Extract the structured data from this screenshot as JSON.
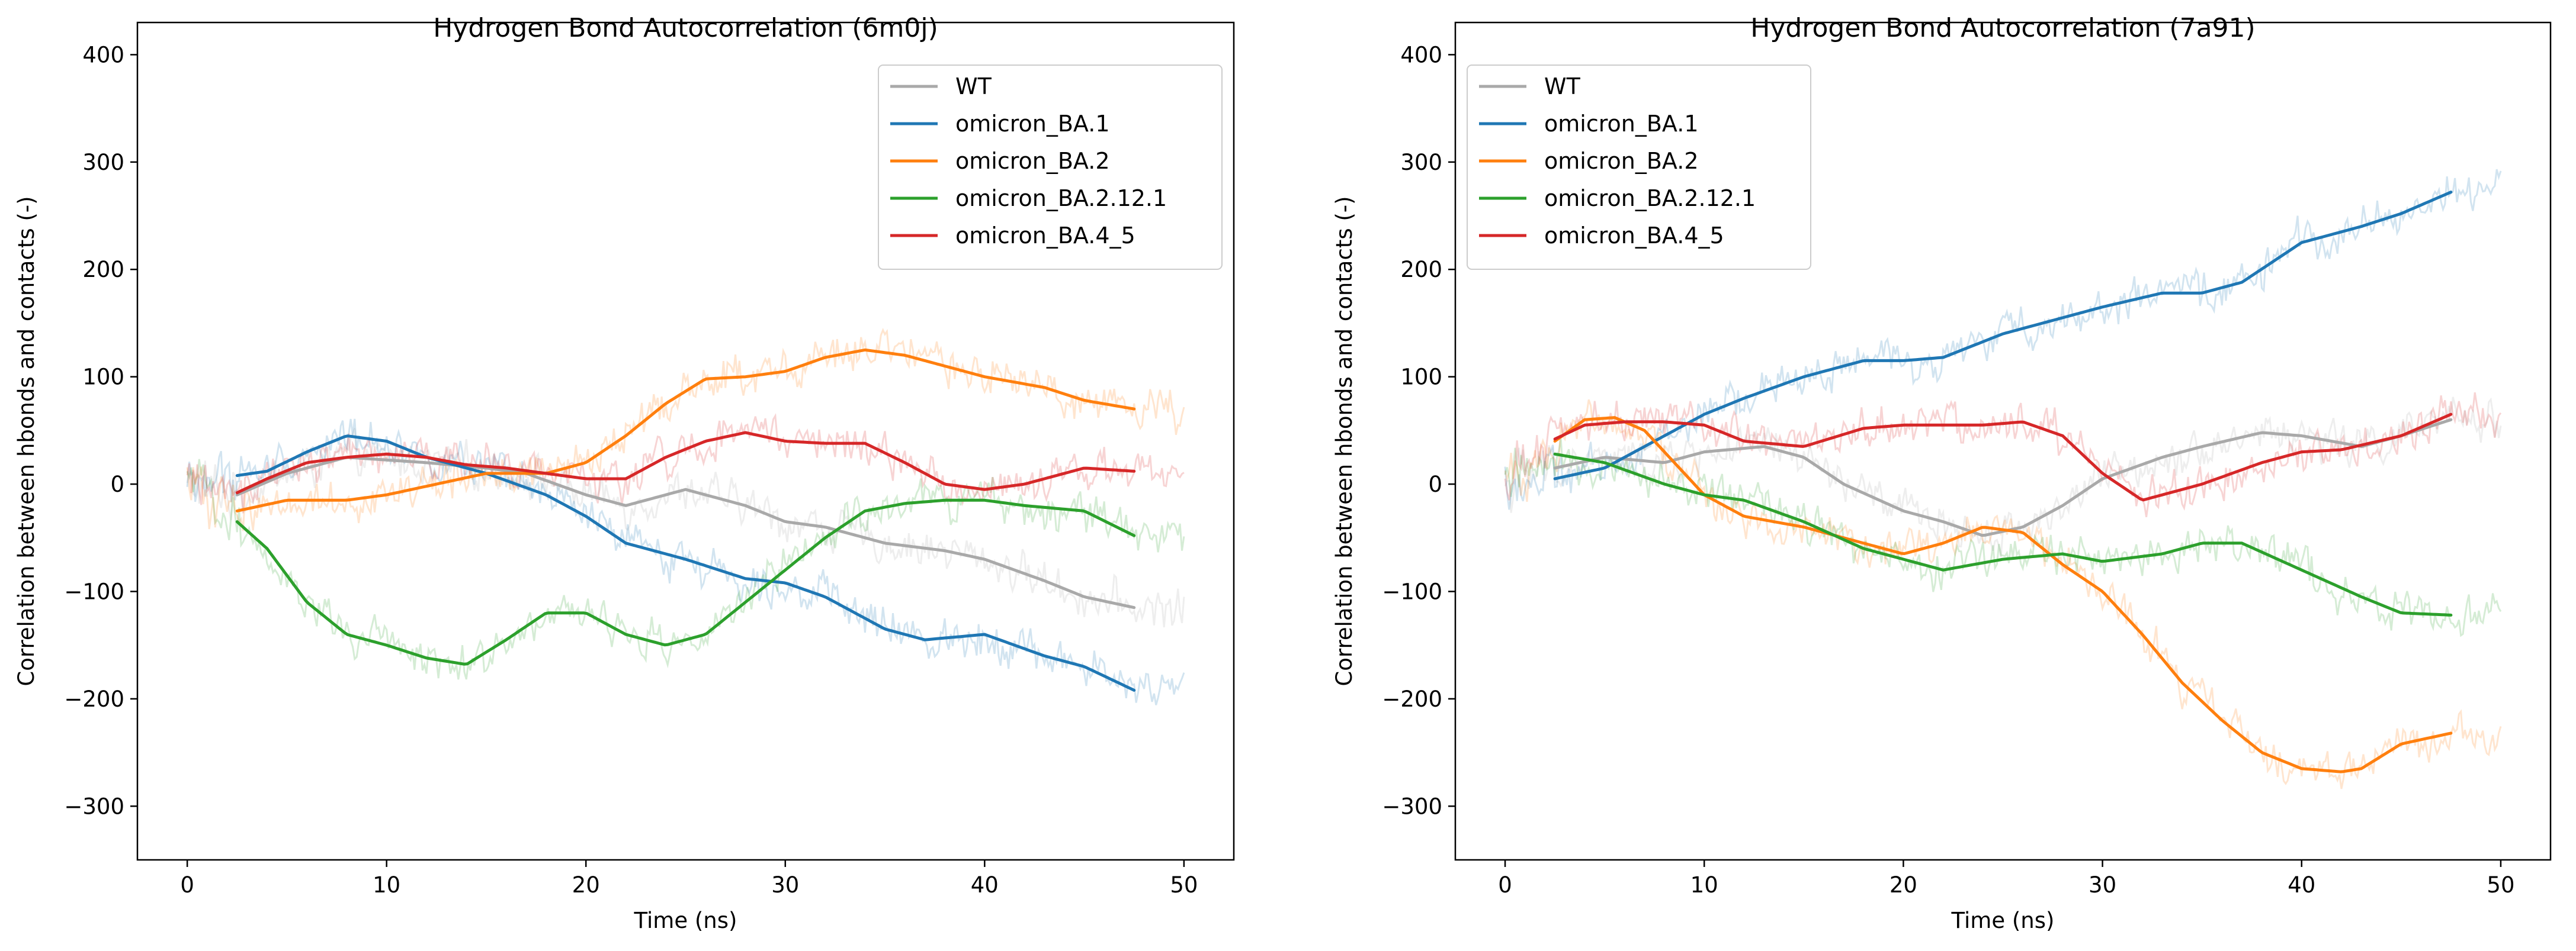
{
  "figure_title": "",
  "chart_data": [
    {
      "type": "line",
      "title": "Hydrogen Bond Autocorrelation (6m0j)",
      "xlabel": "Time (ns)",
      "ylabel": "Correlation between hbonds and contacts (-)",
      "xlim": [
        -2.5,
        52.5
      ],
      "ylim": [
        -350,
        430
      ],
      "xticks": [
        0,
        10,
        20,
        30,
        40,
        50
      ],
      "yticks": [
        -300,
        -200,
        -100,
        0,
        100,
        200,
        300,
        400
      ],
      "grid": false,
      "legend_position": "top-right",
      "series": [
        {
          "name": "WT",
          "color": "#a9a9a9",
          "x": [
            2.5,
            5,
            8,
            12,
            15,
            17,
            20,
            22,
            25,
            28,
            30,
            32,
            35,
            38,
            40,
            43,
            45,
            47.5
          ],
          "y": [
            -10,
            10,
            25,
            20,
            15,
            10,
            -10,
            -20,
            -5,
            -20,
            -35,
            -40,
            -55,
            -62,
            -70,
            -90,
            -105,
            -115
          ]
        },
        {
          "name": "omicron_BA.1",
          "color": "#1f77b4",
          "x": [
            2.5,
            4,
            6,
            8,
            10,
            12,
            15,
            18,
            20,
            22,
            25,
            28,
            30,
            32,
            35,
            37,
            40,
            43,
            45,
            47.5
          ],
          "y": [
            8,
            12,
            30,
            45,
            40,
            25,
            10,
            -10,
            -30,
            -55,
            -70,
            -88,
            -92,
            -105,
            -135,
            -145,
            -140,
            -160,
            -170,
            -192
          ]
        },
        {
          "name": "omicron_BA.2",
          "color": "#ff7f0e",
          "x": [
            2.5,
            5,
            8,
            10,
            15,
            18,
            20,
            22,
            24,
            26,
            28,
            30,
            32,
            34,
            36,
            38,
            40,
            43,
            45,
            47.5
          ],
          "y": [
            -25,
            -15,
            -15,
            -10,
            10,
            10,
            20,
            45,
            75,
            98,
            100,
            105,
            118,
            125,
            120,
            110,
            100,
            90,
            78,
            70
          ]
        },
        {
          "name": "omicron_BA.2.12.1",
          "color": "#2ca02c",
          "x": [
            2.5,
            4,
            6,
            8,
            10,
            12,
            14,
            16,
            18,
            20,
            22,
            24,
            26,
            28,
            30,
            32,
            34,
            36,
            38,
            40,
            42,
            45,
            47.5
          ],
          "y": [
            -35,
            -60,
            -110,
            -140,
            -150,
            -162,
            -168,
            -145,
            -120,
            -120,
            -140,
            -150,
            -140,
            -110,
            -80,
            -50,
            -25,
            -18,
            -15,
            -15,
            -20,
            -25,
            -48
          ]
        },
        {
          "name": "omicron_BA.4_5",
          "color": "#d62728",
          "x": [
            2.5,
            4,
            6,
            8,
            10,
            12,
            14,
            16,
            18,
            20,
            22,
            24,
            26,
            28,
            30,
            32,
            34,
            36,
            38,
            40,
            42,
            45,
            47.5
          ],
          "y": [
            -8,
            5,
            20,
            25,
            28,
            25,
            18,
            15,
            10,
            5,
            5,
            25,
            40,
            48,
            40,
            38,
            38,
            20,
            0,
            -5,
            0,
            15,
            12
          ]
        }
      ]
    },
    {
      "type": "line",
      "title": "Hydrogen Bond Autocorrelation (7a91)",
      "xlabel": "Time (ns)",
      "ylabel": "Correlation between hbonds and contacts (-)",
      "xlim": [
        -2.5,
        52.5
      ],
      "ylim": [
        -350,
        430
      ],
      "xticks": [
        0,
        10,
        20,
        30,
        40,
        50
      ],
      "yticks": [
        -300,
        -200,
        -100,
        0,
        100,
        200,
        300,
        400
      ],
      "grid": false,
      "legend_position": "top-left",
      "series": [
        {
          "name": "WT",
          "color": "#a9a9a9",
          "x": [
            2.5,
            5,
            8,
            10,
            13,
            15,
            17,
            20,
            22,
            24,
            26,
            28,
            30,
            33,
            35,
            38,
            40,
            43,
            45,
            47.5
          ],
          "y": [
            15,
            25,
            20,
            30,
            35,
            25,
            0,
            -25,
            -35,
            -48,
            -40,
            -20,
            5,
            25,
            35,
            48,
            45,
            35,
            45,
            60
          ]
        },
        {
          "name": "omicron_BA.1",
          "color": "#1f77b4",
          "x": [
            2.5,
            5,
            8,
            10,
            12,
            15,
            18,
            20,
            22,
            25,
            27,
            30,
            33,
            35,
            37,
            40,
            43,
            45,
            47.5
          ],
          "y": [
            5,
            15,
            45,
            65,
            80,
            100,
            115,
            115,
            118,
            140,
            150,
            165,
            178,
            178,
            188,
            225,
            240,
            252,
            272
          ]
        },
        {
          "name": "omicron_BA.2",
          "color": "#ff7f0e",
          "x": [
            2.5,
            4,
            5.5,
            7,
            8,
            9,
            10,
            12,
            15,
            18,
            20,
            22,
            24,
            26,
            28,
            30,
            32,
            34,
            36,
            38,
            40,
            42,
            43,
            45,
            47.5
          ],
          "y": [
            40,
            60,
            62,
            50,
            30,
            10,
            -10,
            -30,
            -40,
            -55,
            -65,
            -55,
            -40,
            -45,
            -75,
            -100,
            -140,
            -185,
            -220,
            -250,
            -265,
            -268,
            -265,
            -242,
            -232
          ]
        },
        {
          "name": "omicron_BA.2.12.1",
          "color": "#2ca02c",
          "x": [
            2.5,
            5,
            8,
            10,
            12,
            15,
            18,
            20,
            22,
            25,
            28,
            30,
            33,
            35,
            37,
            40,
            43,
            45,
            47.5
          ],
          "y": [
            28,
            20,
            0,
            -10,
            -15,
            -35,
            -60,
            -70,
            -80,
            -70,
            -65,
            -72,
            -65,
            -55,
            -55,
            -80,
            -105,
            -120,
            -122
          ]
        },
        {
          "name": "omicron_BA.4_5",
          "color": "#d62728",
          "x": [
            2.5,
            4,
            6,
            8,
            10,
            12,
            15,
            18,
            20,
            22,
            24,
            26,
            28,
            30,
            32,
            35,
            38,
            40,
            42,
            45,
            47.5
          ],
          "y": [
            42,
            55,
            58,
            58,
            55,
            40,
            35,
            52,
            55,
            55,
            55,
            58,
            45,
            10,
            -15,
            0,
            20,
            30,
            32,
            45,
            65
          ]
        }
      ]
    }
  ]
}
